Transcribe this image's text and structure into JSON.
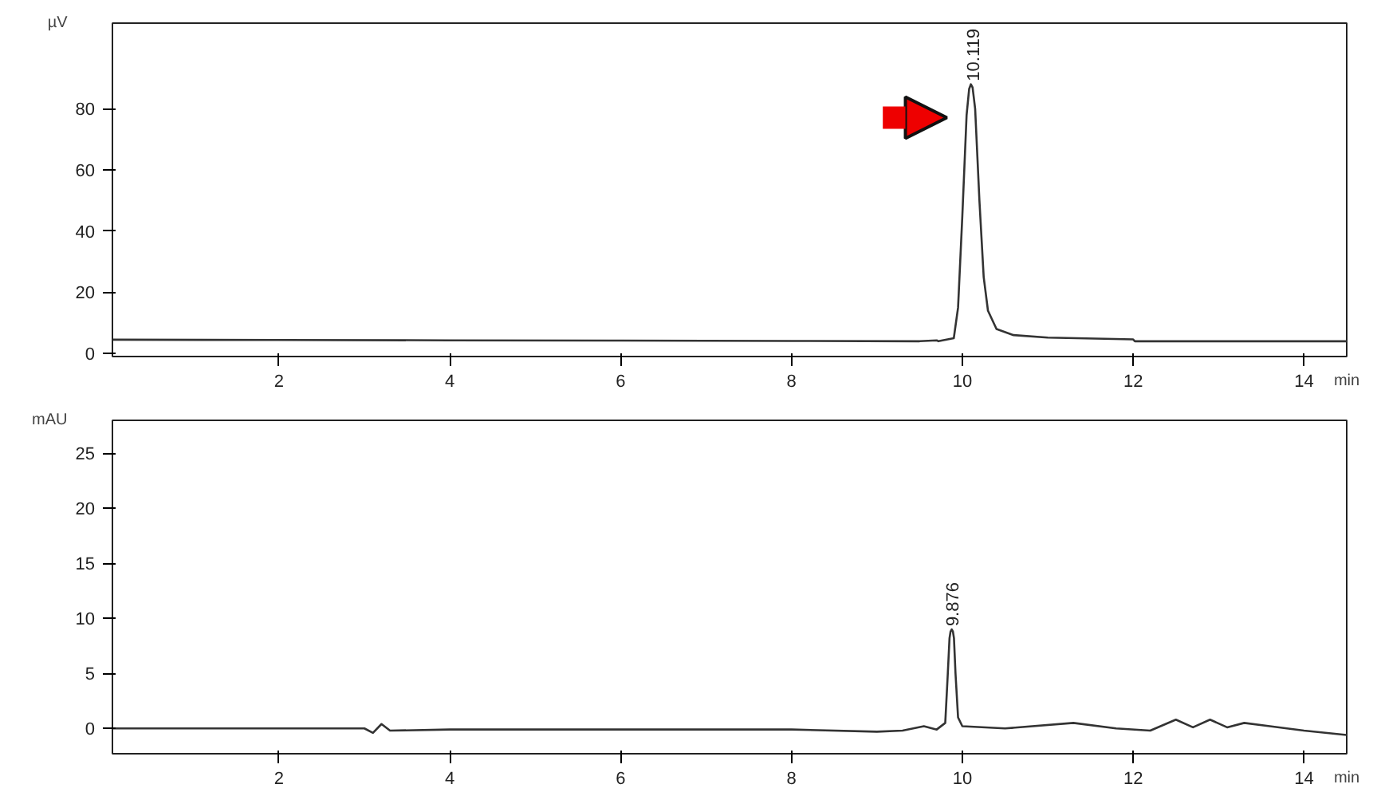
{
  "chart_data": [
    {
      "type": "line",
      "ylabel": "µV",
      "xlabel": "min",
      "xlim": [
        0.05,
        14.5
      ],
      "ylim": [
        -1,
        108
      ],
      "xticks": [
        2,
        4,
        6,
        8,
        10,
        12,
        14
      ],
      "yticks": [
        0,
        20,
        40,
        60,
        80
      ],
      "grid": false,
      "series": [
        {
          "color": "#333333",
          "x": [
            0.05,
            2,
            4,
            6,
            8,
            9.5,
            9.7,
            9.72,
            9.9,
            9.95,
            10.0,
            10.05,
            10.08,
            10.1,
            10.12,
            10.15,
            10.2,
            10.25,
            10.3,
            10.4,
            10.6,
            11,
            12,
            12.02,
            13,
            14.5
          ],
          "values": [
            4.5,
            4.4,
            4.3,
            4.2,
            4.1,
            4.0,
            4.3,
            4.0,
            5,
            15,
            45,
            78,
            86.5,
            88,
            87,
            80,
            50,
            25,
            14,
            8,
            6,
            5.2,
            4.6,
            4.0,
            4.0,
            4.0
          ]
        }
      ],
      "annotations": [
        {
          "text": "10.119",
          "x": 10.119,
          "y": 88
        }
      ]
    },
    {
      "type": "line",
      "ylabel": "mAU",
      "xlabel": "min",
      "xlim": [
        0.05,
        14.5
      ],
      "ylim": [
        -2.3,
        28
      ],
      "xticks": [
        2,
        4,
        6,
        8,
        10,
        12,
        14
      ],
      "yticks": [
        0,
        5,
        10,
        15,
        20,
        25
      ],
      "grid": false,
      "series": [
        {
          "color": "#333333",
          "x": [
            0.05,
            3.0,
            3.1,
            3.2,
            3.3,
            4,
            6,
            8,
            9.0,
            9.3,
            9.55,
            9.7,
            9.8,
            9.83,
            9.85,
            9.862,
            9.876,
            9.89,
            9.902,
            9.92,
            9.95,
            10.0,
            10.5,
            11.3,
            11.8,
            12.2,
            12.5,
            12.7,
            12.9,
            13.1,
            13.3,
            13.6,
            14,
            14.5
          ],
          "values": [
            0,
            0,
            -0.4,
            0.4,
            -0.2,
            -0.1,
            -0.1,
            -0.1,
            -0.3,
            -0.2,
            0.2,
            -0.1,
            0.5,
            5,
            8.2,
            8.8,
            9.0,
            8.8,
            8.2,
            5,
            1,
            0.2,
            0,
            0.5,
            0,
            -0.2,
            0.8,
            0.1,
            0.8,
            0.1,
            0.5,
            0.2,
            -0.2,
            -0.6
          ]
        }
      ],
      "annotations": [
        {
          "text": "9.876",
          "x": 9.876,
          "y": 9
        }
      ]
    }
  ]
}
